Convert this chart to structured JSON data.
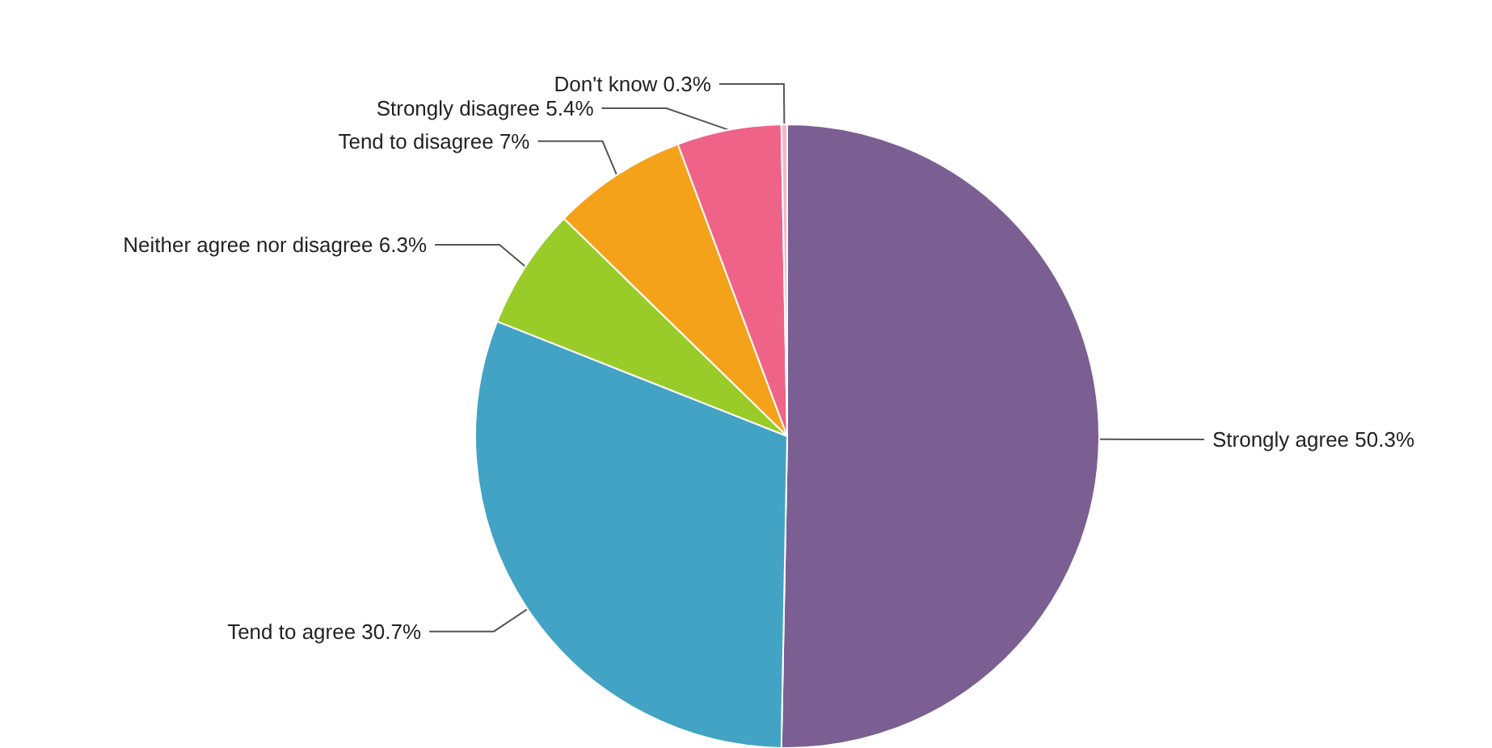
{
  "chart_data": {
    "type": "pie",
    "categories": [
      "Strongly agree",
      "Tend to agree",
      "Neither agree nor disagree",
      "Tend to disagree",
      "Strongly disagree",
      "Don't know"
    ],
    "values": [
      50.3,
      30.7,
      6.3,
      7,
      5.4,
      0.3
    ],
    "value_labels": [
      "50.3%",
      "30.7%",
      "6.3%",
      "7%",
      "5.4%",
      "0.3%"
    ],
    "colors": [
      "#7b5f93",
      "#42a3c4",
      "#99cc29",
      "#f5a21b",
      "#ef6388",
      "#f4b7c8"
    ]
  }
}
